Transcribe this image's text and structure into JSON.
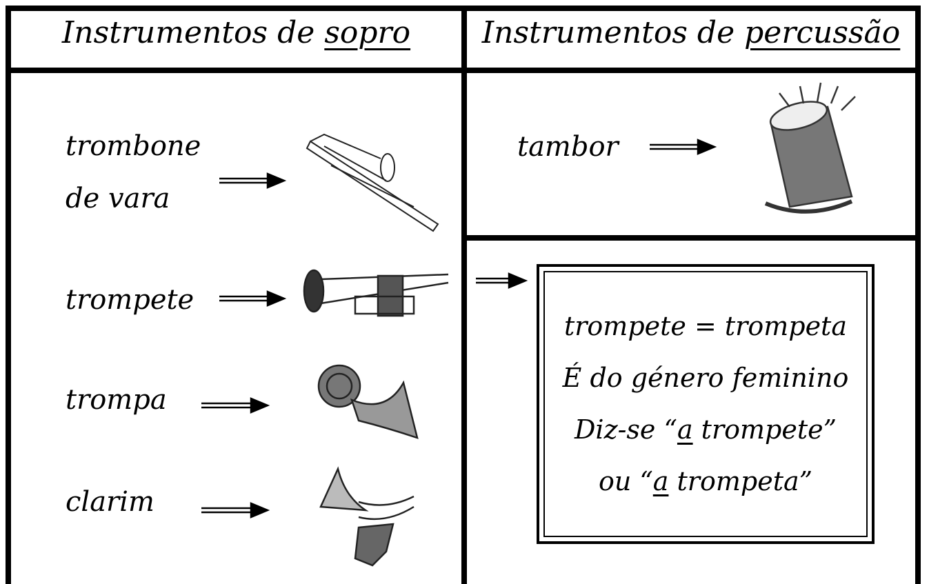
{
  "header": {
    "left": {
      "prefix": "Instrumentos de",
      "emphasis": "sopro"
    },
    "right": {
      "prefix": "Instrumentos de",
      "emphasis": "percussão"
    }
  },
  "wind_instruments": [
    {
      "lines": [
        "trombone",
        "de vara"
      ]
    },
    {
      "lines": [
        "trompete"
      ]
    },
    {
      "lines": [
        "trompa"
      ]
    },
    {
      "lines": [
        "clarim"
      ]
    }
  ],
  "percussion_instruments": [
    {
      "lines": [
        "tambor"
      ]
    }
  ],
  "note": {
    "lines": [
      [
        "trompete = trompeta"
      ],
      [
        "É do género feminino"
      ],
      [
        "Diz-se “",
        "a",
        " trompete”"
      ],
      [
        "ou “",
        "a",
        " trompeta”"
      ]
    ]
  }
}
